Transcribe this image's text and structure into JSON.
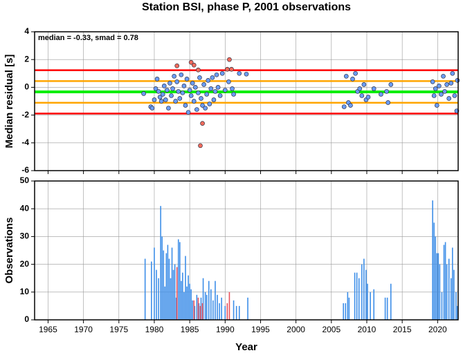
{
  "chart_data": [
    {
      "type": "scatter",
      "title": "Station BSI, phase P, 2001 observations",
      "y_label": "Median residual [s]",
      "annotation": "median = -0.33, smad = 0.78",
      "xlim": [
        1963.1,
        2022.9
      ],
      "xticks": [
        1965,
        1970,
        1975,
        1980,
        1985,
        1990,
        1995,
        2000,
        2005,
        2010,
        2015,
        2020
      ],
      "ylim": [
        -6,
        4
      ],
      "yticks": [
        4,
        2,
        0,
        -2,
        -4,
        -6
      ],
      "grid": true,
      "hlines": [
        {
          "value": 1.23,
          "color": "#ff0000"
        },
        {
          "value": -1.89,
          "color": "#ff0000"
        },
        {
          "value": 0.45,
          "color": "#ffa500"
        },
        {
          "value": -1.11,
          "color": "#ffa500"
        },
        {
          "value": -0.33,
          "color": "#00ee00"
        }
      ],
      "series": [
        {
          "color": "#6a9cf5",
          "x": [
            1978.5,
            1979.5,
            1979.7,
            1980,
            1980.2,
            1980.4,
            1980.6,
            1980.8,
            1981,
            1981.2,
            1981.4,
            1981.6,
            1981.8,
            1982,
            1982.2,
            1982.4,
            1982.6,
            1982.8,
            1983,
            1983.2,
            1983.4,
            1983.6,
            1983.8,
            1984,
            1984.2,
            1984.4,
            1984.6,
            1984.8,
            1985,
            1985.2,
            1985.4,
            1985.6,
            1985.8,
            1986,
            1986.2,
            1986.4,
            1986.6,
            1986.8,
            1987,
            1987.2,
            1987.4,
            1987.6,
            1987.8,
            1988,
            1988.2,
            1988.4,
            1988.6,
            1988.8,
            1989,
            1989.3,
            1989.6,
            1990,
            1990.5,
            1991,
            1991.2,
            1992,
            1993,
            2006.8,
            2007.1,
            2007.4,
            2007.7,
            2008,
            2008.4,
            2008.7,
            2009,
            2009.3,
            2009.6,
            2009.9,
            2010.2,
            2011,
            2012,
            2012.8,
            2013,
            2013.4,
            2019.3,
            2019.5,
            2019.7,
            2019.9,
            2020.2,
            2020.5,
            2020.8,
            2021,
            2021.3,
            2021.6,
            2021.9,
            2022.1,
            2022.4,
            2022.7,
            2022.8
          ],
          "values": [
            -0.45,
            -1.4,
            -1.5,
            -0.9,
            -0.1,
            0.6,
            -0.3,
            -0.7,
            -1.0,
            -0.5,
            0.1,
            -0.9,
            -0.2,
            -1.5,
            0.3,
            -0.6,
            -0.1,
            0.8,
            -1.0,
            0.4,
            -0.3,
            -0.8,
            0.9,
            -0.4,
            0.1,
            -1.3,
            0.6,
            -1.8,
            -0.2,
            -0.6,
            0.3,
            -1.0,
            0.0,
            -1.6,
            -0.4,
            0.7,
            -0.8,
            -1.3,
            0.2,
            -1.5,
            -0.5,
            0.5,
            -1.2,
            -0.1,
            0.7,
            -0.9,
            -0.3,
            0.9,
            0.0,
            -0.6,
            1.0,
            -0.2,
            0.4,
            -0.1,
            -0.5,
            1.0,
            0.95,
            -1.4,
            0.8,
            -1.1,
            -1.3,
            0.6,
            1.0,
            -0.3,
            -0.1,
            -0.6,
            0.2,
            -0.9,
            -0.7,
            -0.1,
            -0.5,
            -0.3,
            -1.1,
            0.2,
            0.4,
            -0.6,
            -0.1,
            -1.3,
            0.1,
            -0.5,
            0.8,
            -0.3,
            0.2,
            -0.8,
            0.3,
            1.0,
            -0.6,
            -1.7,
            0.5
          ]
        },
        {
          "color": "#f26b5b",
          "x": [
            1983.2,
            1985.2,
            1985.6,
            1986.2,
            1986.5,
            1986.8,
            1990.3,
            1990.6,
            1990.9
          ],
          "values": [
            1.55,
            1.8,
            1.6,
            1.25,
            -4.2,
            -2.6,
            1.3,
            2.0,
            1.3
          ]
        }
      ]
    },
    {
      "type": "bar",
      "x_label": "Year",
      "y_label": "Observations",
      "xlim": [
        1963.1,
        2022.9
      ],
      "xticks": [
        1965,
        1970,
        1975,
        1980,
        1985,
        1990,
        1995,
        2000,
        2005,
        2010,
        2015,
        2020
      ],
      "ylim": [
        0,
        50
      ],
      "yticks": [
        0,
        10,
        20,
        30,
        40,
        50
      ],
      "grid": true,
      "series": [
        {
          "color": "#3d8ee8",
          "x": [
            1978.7,
            1979.6,
            1980,
            1980.3,
            1980.6,
            1980.9,
            1981.1,
            1981.3,
            1981.5,
            1981.7,
            1981.9,
            1982.1,
            1982.3,
            1982.5,
            1982.7,
            1982.9,
            1983.1,
            1983.4,
            1983.6,
            1983.8,
            1984,
            1984.2,
            1984.4,
            1984.6,
            1984.8,
            1985,
            1985.2,
            1985.4,
            1985.7,
            1986,
            1986.3,
            1986.6,
            1986.9,
            1987.2,
            1987.4,
            1987.7,
            1988,
            1988.3,
            1988.6,
            1988.9,
            1989.2,
            1989.5,
            1990,
            1991.2,
            1991.6,
            1992,
            1993.2,
            2006.7,
            2007,
            2007.3,
            2007.5,
            2008.3,
            2008.6,
            2008.9,
            2009.3,
            2009.6,
            2009.9,
            2010.1,
            2010.5,
            2011,
            2012.6,
            2012.9,
            2013.4,
            2019.3,
            2019.5,
            2019.7,
            2019.9,
            2020.1,
            2020.3,
            2020.6,
            2020.9,
            2021.1,
            2021.3,
            2021.6,
            2021.9,
            2022.1,
            2022.3,
            2022.6,
            2022.8
          ],
          "values": [
            22,
            21,
            26,
            18,
            15,
            41,
            30,
            25,
            12,
            24,
            27,
            22,
            15,
            26,
            18,
            20,
            8,
            29,
            28,
            14,
            17,
            10,
            23,
            12,
            16,
            13,
            11,
            7,
            5,
            9,
            6,
            8,
            15,
            10,
            9,
            14,
            11,
            7,
            14,
            9,
            6,
            8,
            5,
            7,
            5,
            5,
            8,
            6,
            6,
            10,
            8,
            17,
            17,
            15,
            20,
            22,
            18,
            13,
            10,
            11,
            8,
            8,
            13,
            43,
            35,
            30,
            24,
            24,
            20,
            10,
            27,
            28,
            20,
            22,
            15,
            26,
            18,
            10,
            5
          ]
        },
        {
          "color": "#e8505a",
          "x": [
            1983.2,
            1985.6,
            1986.2,
            1986.5,
            1986.8,
            1990.3,
            1990.6
          ],
          "values": [
            19,
            7,
            8,
            5,
            6,
            6,
            10
          ]
        }
      ]
    }
  ]
}
